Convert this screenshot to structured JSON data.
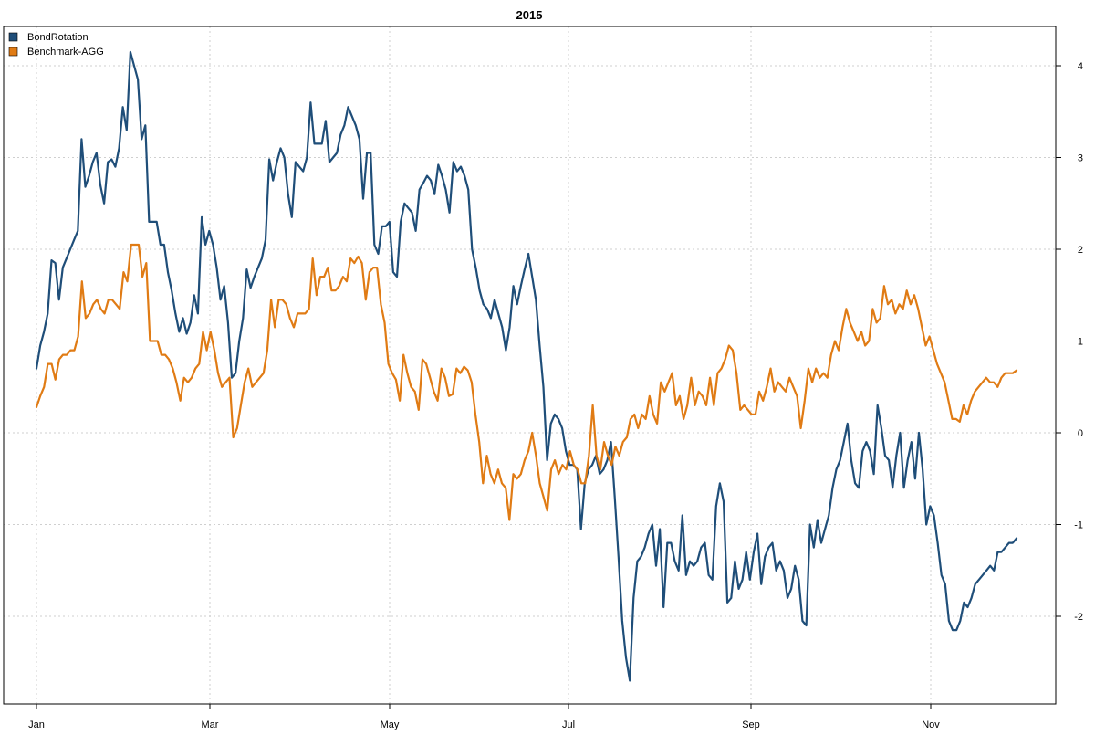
{
  "chart_data": {
    "type": "line",
    "title": "2015",
    "x_tick_labels": [
      "Jan",
      "Mar",
      "May",
      "Jul",
      "Sep",
      "Nov"
    ],
    "y_ticks": [
      4,
      3,
      2,
      1,
      0,
      -1,
      -2
    ],
    "y_axis_side": "right",
    "ylim": [
      -2.98,
      4.43
    ],
    "grid": true,
    "legend_position": "top-left",
    "series": [
      {
        "name": "BondRotation",
        "color": "#1f4e79",
        "values": [
          0.7,
          0.95,
          1.1,
          1.3,
          1.88,
          1.85,
          1.45,
          1.8,
          1.9,
          2.0,
          2.1,
          2.2,
          3.2,
          2.68,
          2.8,
          2.95,
          3.05,
          2.7,
          2.5,
          2.95,
          2.98,
          2.9,
          3.1,
          3.55,
          3.3,
          4.15,
          4.0,
          3.85,
          3.2,
          3.35,
          2.3,
          2.3,
          2.3,
          2.05,
          2.05,
          1.75,
          1.55,
          1.3,
          1.1,
          1.25,
          1.08,
          1.2,
          1.5,
          1.3,
          2.35,
          2.05,
          2.2,
          2.05,
          1.8,
          1.45,
          1.6,
          1.2,
          0.6,
          0.65,
          1.0,
          1.25,
          1.78,
          1.58,
          1.7,
          1.8,
          1.9,
          2.1,
          2.98,
          2.75,
          2.95,
          3.1,
          3.0,
          2.6,
          2.35,
          2.95,
          2.9,
          2.85,
          3.0,
          3.6,
          3.15,
          3.15,
          3.15,
          3.4,
          2.95,
          3.0,
          3.05,
          3.25,
          3.35,
          3.55,
          3.45,
          3.35,
          3.2,
          2.55,
          3.05,
          3.05,
          2.05,
          1.95,
          2.25,
          2.25,
          2.3,
          1.75,
          1.7,
          2.3,
          2.5,
          2.45,
          2.4,
          2.2,
          2.65,
          2.72,
          2.8,
          2.75,
          2.6,
          2.92,
          2.8,
          2.65,
          2.4,
          2.95,
          2.85,
          2.9,
          2.8,
          2.65,
          2.0,
          1.8,
          1.55,
          1.4,
          1.35,
          1.25,
          1.45,
          1.3,
          1.15,
          0.9,
          1.15,
          1.6,
          1.4,
          1.6,
          1.78,
          1.95,
          1.7,
          1.45,
          0.95,
          0.5,
          -0.3,
          0.1,
          0.2,
          0.15,
          0.05,
          -0.2,
          -0.35,
          -0.35,
          -0.4,
          -1.05,
          -0.55,
          -0.4,
          -0.35,
          -0.25,
          -0.45,
          -0.4,
          -0.3,
          -0.1,
          -0.7,
          -1.35,
          -2.05,
          -2.45,
          -2.7,
          -1.8,
          -1.4,
          -1.35,
          -1.25,
          -1.1,
          -1.0,
          -1.45,
          -1.05,
          -1.9,
          -1.2,
          -1.2,
          -1.4,
          -1.5,
          -0.9,
          -1.55,
          -1.4,
          -1.45,
          -1.4,
          -1.25,
          -1.2,
          -1.55,
          -1.6,
          -0.8,
          -0.55,
          -0.75,
          -1.85,
          -1.8,
          -1.4,
          -1.7,
          -1.6,
          -1.3,
          -1.6,
          -1.3,
          -1.1,
          -1.65,
          -1.35,
          -1.25,
          -1.2,
          -1.5,
          -1.4,
          -1.5,
          -1.8,
          -1.7,
          -1.45,
          -1.6,
          -2.05,
          -2.1,
          -1.0,
          -1.25,
          -0.95,
          -1.2,
          -1.05,
          -0.9,
          -0.6,
          -0.4,
          -0.3,
          -0.1,
          0.1,
          -0.3,
          -0.55,
          -0.6,
          -0.2,
          -0.1,
          -0.2,
          -0.45,
          0.3,
          0.05,
          -0.25,
          -0.3,
          -0.6,
          -0.25,
          0.0,
          -0.6,
          -0.3,
          -0.1,
          -0.5,
          0.0,
          -0.4,
          -1.0,
          -0.8,
          -0.9,
          -1.2,
          -1.55,
          -1.65,
          -2.05,
          -2.15,
          -2.15,
          -2.05,
          -1.85,
          -1.9,
          -1.8,
          -1.65,
          -1.6,
          -1.55,
          -1.5,
          -1.45,
          -1.5,
          -1.3,
          -1.3,
          -1.25,
          -1.2,
          -1.2,
          -1.15
        ]
      },
      {
        "name": "Benchmark-AGG",
        "color": "#e07b14",
        "values": [
          0.28,
          0.4,
          0.5,
          0.75,
          0.75,
          0.58,
          0.8,
          0.85,
          0.85,
          0.9,
          0.9,
          1.05,
          1.65,
          1.25,
          1.3,
          1.4,
          1.45,
          1.35,
          1.3,
          1.45,
          1.45,
          1.4,
          1.35,
          1.75,
          1.65,
          2.05,
          2.05,
          2.05,
          1.7,
          1.85,
          1.0,
          1.0,
          1.0,
          0.85,
          0.85,
          0.8,
          0.7,
          0.55,
          0.35,
          0.6,
          0.55,
          0.6,
          0.7,
          0.75,
          1.1,
          0.9,
          1.1,
          0.9,
          0.65,
          0.5,
          0.55,
          0.6,
          -0.05,
          0.05,
          0.3,
          0.55,
          0.7,
          0.5,
          0.55,
          0.6,
          0.65,
          0.9,
          1.45,
          1.15,
          1.45,
          1.45,
          1.4,
          1.25,
          1.15,
          1.3,
          1.3,
          1.3,
          1.35,
          1.9,
          1.5,
          1.7,
          1.7,
          1.8,
          1.55,
          1.55,
          1.6,
          1.7,
          1.65,
          1.9,
          1.85,
          1.92,
          1.85,
          1.45,
          1.75,
          1.8,
          1.8,
          1.4,
          1.2,
          0.75,
          0.65,
          0.58,
          0.35,
          0.85,
          0.65,
          0.5,
          0.45,
          0.25,
          0.8,
          0.75,
          0.6,
          0.45,
          0.35,
          0.7,
          0.6,
          0.4,
          0.42,
          0.7,
          0.65,
          0.72,
          0.68,
          0.55,
          0.2,
          -0.1,
          -0.55,
          -0.25,
          -0.45,
          -0.55,
          -0.4,
          -0.55,
          -0.6,
          -0.95,
          -0.45,
          -0.5,
          -0.45,
          -0.3,
          -0.2,
          0.0,
          -0.25,
          -0.55,
          -0.7,
          -0.85,
          -0.4,
          -0.3,
          -0.45,
          -0.35,
          -0.4,
          -0.2,
          -0.35,
          -0.4,
          -0.55,
          -0.55,
          -0.25,
          0.3,
          -0.25,
          -0.4,
          -0.1,
          -0.25,
          -0.35,
          -0.15,
          -0.25,
          -0.1,
          -0.05,
          0.15,
          0.2,
          0.05,
          0.2,
          0.15,
          0.4,
          0.2,
          0.1,
          0.55,
          0.45,
          0.55,
          0.65,
          0.3,
          0.4,
          0.15,
          0.3,
          0.6,
          0.3,
          0.45,
          0.4,
          0.3,
          0.6,
          0.3,
          0.65,
          0.7,
          0.8,
          0.95,
          0.9,
          0.65,
          0.25,
          0.3,
          0.25,
          0.2,
          0.2,
          0.45,
          0.35,
          0.5,
          0.7,
          0.45,
          0.55,
          0.5,
          0.45,
          0.6,
          0.5,
          0.4,
          0.05,
          0.35,
          0.7,
          0.55,
          0.7,
          0.6,
          0.65,
          0.6,
          0.85,
          1.0,
          0.9,
          1.15,
          1.35,
          1.2,
          1.1,
          1.0,
          1.1,
          0.95,
          1.0,
          1.35,
          1.2,
          1.25,
          1.6,
          1.4,
          1.45,
          1.3,
          1.4,
          1.35,
          1.55,
          1.4,
          1.5,
          1.35,
          1.15,
          0.95,
          1.05,
          0.9,
          0.75,
          0.65,
          0.55,
          0.35,
          0.15,
          0.15,
          0.12,
          0.3,
          0.2,
          0.35,
          0.45,
          0.5,
          0.55,
          0.6,
          0.55,
          0.55,
          0.5,
          0.6,
          0.65,
          0.65,
          0.65,
          0.68
        ]
      }
    ]
  }
}
